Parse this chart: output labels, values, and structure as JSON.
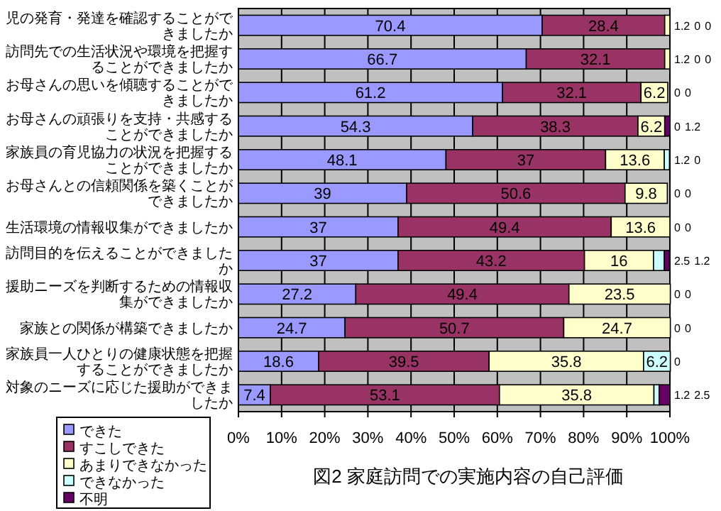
{
  "chart_data": {
    "type": "bar",
    "orientation": "horizontal",
    "stacked": true,
    "title": "図2  家庭訪問での実施内容の自己評価",
    "categories": [
      "児の発育・発達を確認することができましたか",
      "訪問先での生活状況や環境を把握することができましたか",
      "お母さんの思いを傾聴することができましたか",
      "お母さんの頑張りを支持・共感することができましたか",
      "家族員の育児協力の状況を把握することができましたか",
      "お母さんとの信頼関係を築くことができましたか",
      "生活環境の情報収集ができましたか",
      "訪問目的を伝えることができましたか",
      "援助ニーズを判断するための情報収集ができましたか",
      "家族との関係が構築できましたか",
      "家族員一人ひとりの健康状態を把握することができましたか",
      "対象のニーズに応じた援助ができましたか"
    ],
    "series": [
      {
        "name": "できた",
        "color": "#9999ff",
        "values": [
          70.4,
          66.7,
          61.2,
          54.3,
          48.1,
          39,
          37,
          37,
          27.2,
          24.7,
          18.6,
          7.4
        ]
      },
      {
        "name": "すこしできた",
        "color": "#993366",
        "values": [
          28.4,
          32.1,
          32.1,
          38.3,
          37,
          50.6,
          49.4,
          43.2,
          49.4,
          50.7,
          39.5,
          53.1
        ]
      },
      {
        "name": "あまりできなかった",
        "color": "#ffffcc",
        "values": [
          1.2,
          1.2,
          6.2,
          6.2,
          13.6,
          9.8,
          13.6,
          16,
          23.5,
          24.7,
          35.8,
          35.8
        ]
      },
      {
        "name": "できなかった",
        "color": "#ccffff",
        "values": [
          0,
          0,
          0,
          0,
          1.2,
          0,
          0,
          2.5,
          0,
          0,
          6.2,
          1.2
        ]
      },
      {
        "name": "不明",
        "color": "#660066",
        "values": [
          0,
          0,
          0,
          1.2,
          0,
          0,
          0,
          1.2,
          0,
          0,
          0,
          2.5
        ]
      }
    ],
    "xlim": [
      0,
      100
    ],
    "xticks": [
      {
        "value": 0,
        "label": "0%"
      },
      {
        "value": 10,
        "label": "10%"
      },
      {
        "value": 20,
        "label": "20%"
      },
      {
        "value": 30,
        "label": "30%"
      },
      {
        "value": 40,
        "label": "40%"
      },
      {
        "value": 50,
        "label": "50%"
      },
      {
        "value": 60,
        "label": "60%"
      },
      {
        "value": 70,
        "label": "70%"
      },
      {
        "value": 80,
        "label": "80%"
      },
      {
        "value": 90,
        "label": "90%"
      },
      {
        "value": 100,
        "label": "100%"
      }
    ],
    "grid": "x",
    "legend": "bottom left",
    "data_labels": true
  }
}
